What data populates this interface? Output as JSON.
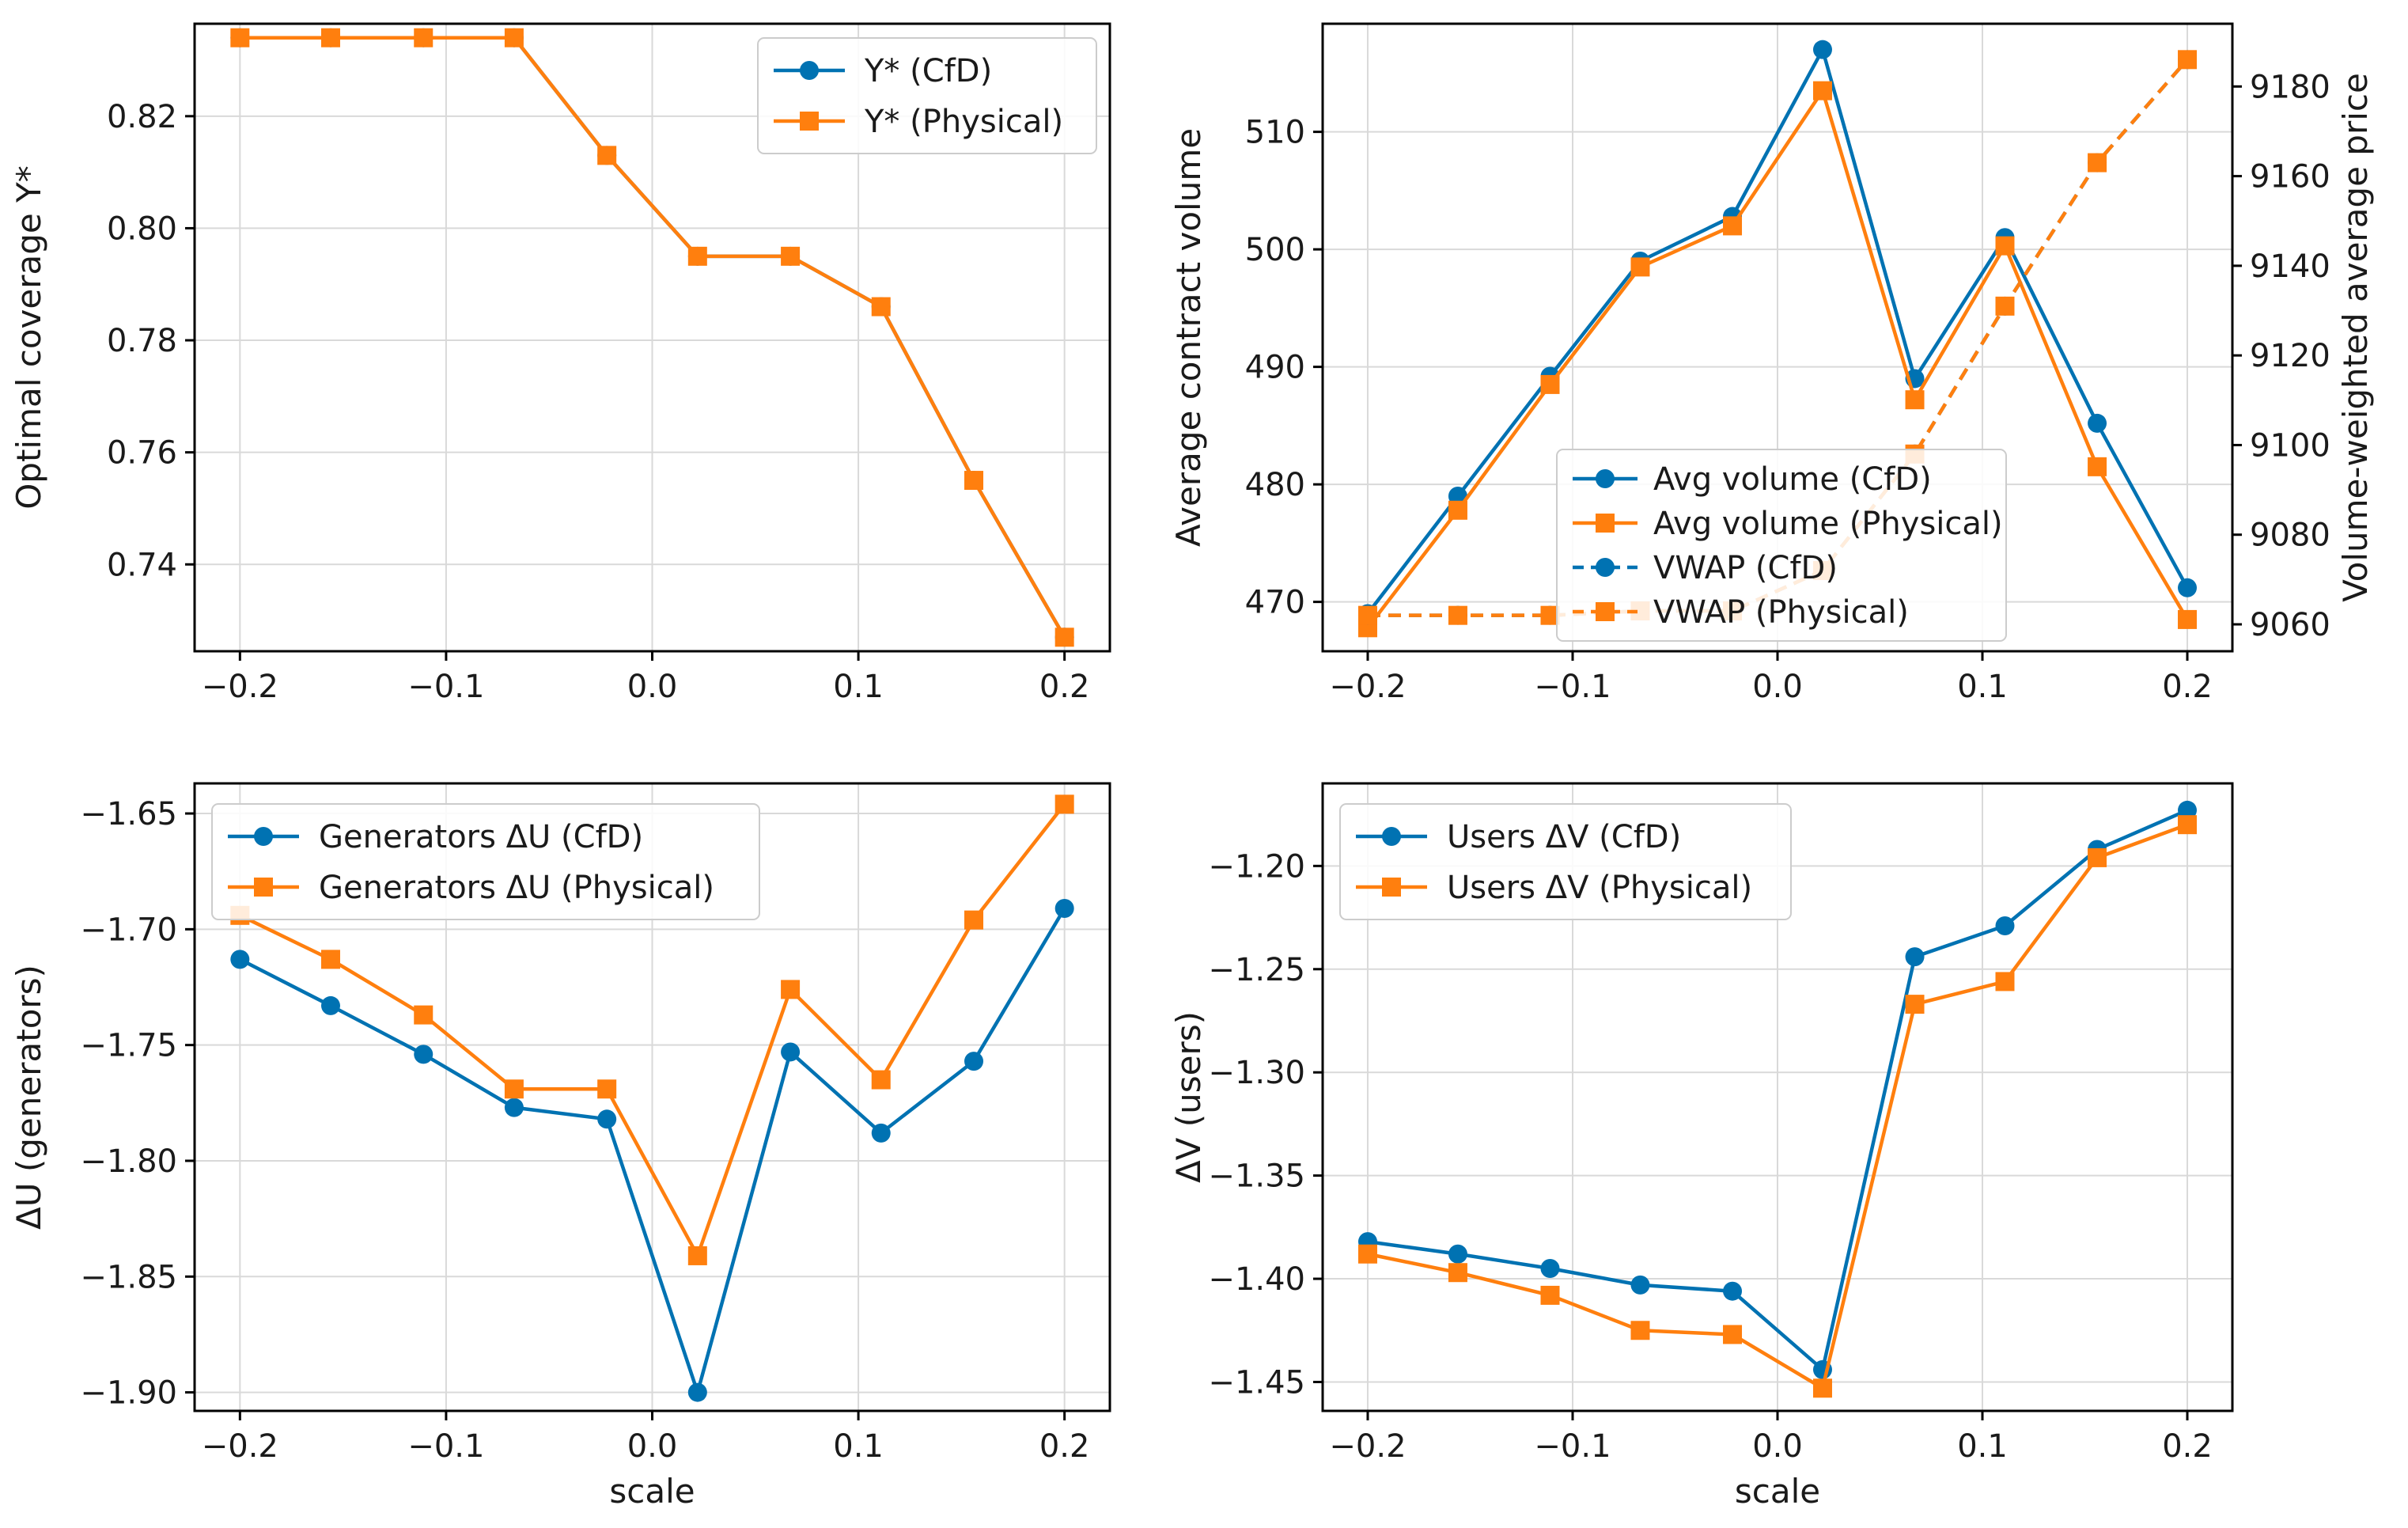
{
  "colors": {
    "cfd": "#0072B2",
    "physical": "#FF7F0E"
  },
  "chart_data": [
    {
      "type": "line",
      "xlabel": "",
      "ylabel": "Optimal coverage Y*",
      "x": [
        -0.2,
        -0.156,
        -0.111,
        -0.067,
        -0.022,
        0.022,
        0.067,
        0.111,
        0.156,
        0.2
      ],
      "xlim": [
        -0.222,
        0.222
      ],
      "ylim": [
        0.7245,
        0.8365
      ],
      "xticks": [
        -0.2,
        -0.1,
        0.0,
        0.1,
        0.2
      ],
      "xticklabels": [
        "−0.2",
        "−0.1",
        "0.0",
        "0.1",
        "0.2"
      ],
      "yticks": [
        0.74,
        0.76,
        0.78,
        0.8,
        0.82
      ],
      "yticklabels": [
        "0.74",
        "0.76",
        "0.78",
        "0.80",
        "0.82"
      ],
      "legend_loc": "top-right",
      "series": [
        {
          "name": "Y* (CfD)",
          "color": "#0072B2",
          "marker": "circle",
          "style": "solid",
          "values": [
            0.834,
            0.834,
            0.834,
            0.834,
            0.813,
            0.795,
            0.795,
            0.786,
            0.755,
            0.727
          ]
        },
        {
          "name": "Y* (Physical)",
          "color": "#FF7F0E",
          "marker": "square",
          "style": "solid",
          "values": [
            0.834,
            0.834,
            0.834,
            0.834,
            0.813,
            0.795,
            0.795,
            0.786,
            0.755,
            0.727
          ]
        }
      ]
    },
    {
      "type": "line",
      "xlabel": "",
      "ylabel": "Average contract volume",
      "y2label": "Volume-weighted average price",
      "x": [
        -0.2,
        -0.156,
        -0.111,
        -0.067,
        -0.022,
        0.022,
        0.067,
        0.111,
        0.156,
        0.2
      ],
      "xlim": [
        -0.222,
        0.222
      ],
      "ylim": [
        465.8,
        519.2
      ],
      "y2lim": [
        9054,
        9194
      ],
      "xticks": [
        -0.2,
        -0.1,
        0.0,
        0.1,
        0.2
      ],
      "xticklabels": [
        "−0.2",
        "−0.1",
        "0.0",
        "0.1",
        "0.2"
      ],
      "yticks": [
        470,
        480,
        490,
        500,
        510
      ],
      "yticklabels": [
        "470",
        "480",
        "490",
        "500",
        "510"
      ],
      "y2ticks": [
        9060,
        9080,
        9100,
        9120,
        9140,
        9160,
        9180
      ],
      "y2ticklabels": [
        "9060",
        "9080",
        "9100",
        "9120",
        "9140",
        "9160",
        "9180"
      ],
      "legend_loc": "lower-center",
      "series": [
        {
          "name": "Avg volume (CfD)",
          "color": "#0072B2",
          "marker": "circle",
          "style": "solid",
          "axis": "left",
          "values": [
            469.0,
            479.0,
            489.2,
            499.0,
            502.8,
            517.0,
            489.0,
            501.0,
            485.2,
            471.2
          ]
        },
        {
          "name": "Avg volume (Physical)",
          "color": "#FF7F0E",
          "marker": "square",
          "style": "solid",
          "axis": "left",
          "values": [
            467.8,
            477.8,
            488.5,
            498.5,
            502.0,
            513.5,
            487.2,
            500.3,
            481.5,
            468.5
          ]
        },
        {
          "name": "VWAP (CfD)",
          "color": "#0072B2",
          "marker": "circle",
          "style": "dashed",
          "axis": "right",
          "values": [
            9062,
            9062,
            9062,
            9063,
            9063,
            9072,
            9098,
            9131,
            9163,
            9186
          ]
        },
        {
          "name": "VWAP (Physical)",
          "color": "#FF7F0E",
          "marker": "square",
          "style": "dashed",
          "axis": "right",
          "values": [
            9062,
            9062,
            9062,
            9063,
            9063,
            9072,
            9098,
            9131,
            9163,
            9186
          ]
        }
      ]
    },
    {
      "type": "line",
      "xlabel": "scale",
      "ylabel": "ΔU (generators)",
      "x": [
        -0.2,
        -0.156,
        -0.111,
        -0.067,
        -0.022,
        0.022,
        0.067,
        0.111,
        0.156,
        0.2
      ],
      "xlim": [
        -0.222,
        0.222
      ],
      "ylim": [
        -1.908,
        -1.637
      ],
      "xticks": [
        -0.2,
        -0.1,
        0.0,
        0.1,
        0.2
      ],
      "xticklabels": [
        "−0.2",
        "−0.1",
        "0.0",
        "0.1",
        "0.2"
      ],
      "yticks": [
        -1.9,
        -1.85,
        -1.8,
        -1.75,
        -1.7,
        -1.65
      ],
      "yticklabels": [
        "−1.90",
        "−1.85",
        "−1.80",
        "−1.75",
        "−1.70",
        "−1.65"
      ],
      "legend_loc": "top-left",
      "series": [
        {
          "name": "Generators ΔU (CfD)",
          "color": "#0072B2",
          "marker": "circle",
          "style": "solid",
          "values": [
            -1.713,
            -1.733,
            -1.754,
            -1.777,
            -1.782,
            -1.9,
            -1.753,
            -1.788,
            -1.757,
            -1.691
          ]
        },
        {
          "name": "Generators ΔU (Physical)",
          "color": "#FF7F0E",
          "marker": "square",
          "style": "solid",
          "values": [
            -1.694,
            -1.713,
            -1.737,
            -1.769,
            -1.769,
            -1.841,
            -1.726,
            -1.765,
            -1.696,
            -1.646
          ]
        }
      ]
    },
    {
      "type": "line",
      "xlabel": "scale",
      "ylabel": "ΔV (users)",
      "x": [
        -0.2,
        -0.156,
        -0.111,
        -0.067,
        -0.022,
        0.022,
        0.067,
        0.111,
        0.156,
        0.2
      ],
      "xlim": [
        -0.222,
        0.222
      ],
      "ylim": [
        -1.464,
        -1.16
      ],
      "xticks": [
        -0.2,
        -0.1,
        0.0,
        0.1,
        0.2
      ],
      "xticklabels": [
        "−0.2",
        "−0.1",
        "0.0",
        "0.1",
        "0.2"
      ],
      "yticks": [
        -1.45,
        -1.4,
        -1.35,
        -1.3,
        -1.25,
        -1.2
      ],
      "yticklabels": [
        "−1.45",
        "−1.40",
        "−1.35",
        "−1.30",
        "−1.25",
        "−1.20"
      ],
      "legend_loc": "top-left",
      "series": [
        {
          "name": "Users ΔV (CfD)",
          "color": "#0072B2",
          "marker": "circle",
          "style": "solid",
          "values": [
            -1.382,
            -1.388,
            -1.395,
            -1.403,
            -1.406,
            -1.444,
            -1.244,
            -1.229,
            -1.192,
            -1.173
          ]
        },
        {
          "name": "Users ΔV (Physical)",
          "color": "#FF7F0E",
          "marker": "square",
          "style": "solid",
          "values": [
            -1.388,
            -1.397,
            -1.408,
            -1.425,
            -1.427,
            -1.453,
            -1.267,
            -1.256,
            -1.196,
            -1.18
          ]
        }
      ]
    }
  ]
}
